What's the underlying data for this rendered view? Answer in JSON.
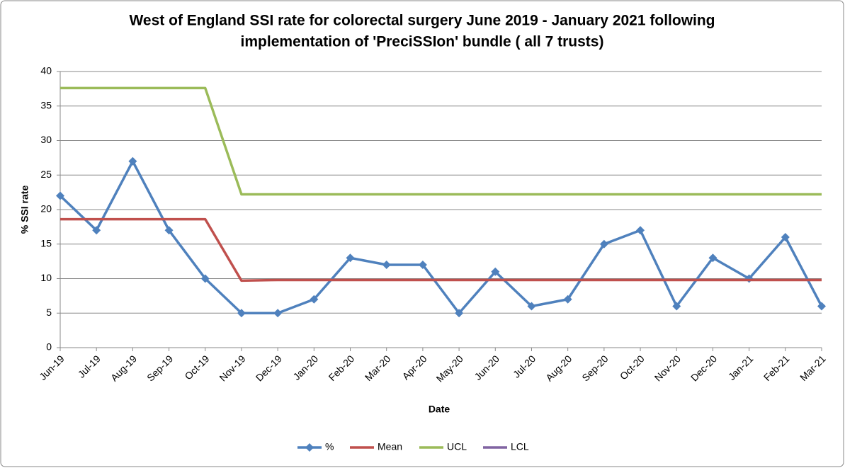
{
  "chart_data": {
    "type": "line",
    "title": [
      "West of England SSI rate for colorectal surgery June 2019 - January 2021 following",
      "implementation of 'PreciSSIon' bundle ( all 7 trusts)"
    ],
    "x_label": "Date",
    "y_label": "% SSI rate",
    "categories": [
      "Jun-19",
      "Jul-19",
      "Aug-19",
      "Sep-19",
      "Oct-19",
      "Nov-19",
      "Dec-19",
      "Jan-20",
      "Feb-20",
      "Mar-20",
      "Apr-20",
      "May-20",
      "Jun-20",
      "Jul-20",
      "Aug-20",
      "Sep-20",
      "Oct-20",
      "Nov-20",
      "Dec-20",
      "Jan-21",
      "Feb-21",
      "Mar-21"
    ],
    "series": [
      {
        "name": "%",
        "color": "#4f81bd",
        "marker": "diamond",
        "values": [
          22,
          17,
          27,
          17,
          10,
          5,
          5,
          7,
          13,
          12,
          12,
          5,
          11,
          6,
          7,
          15,
          17,
          6,
          13,
          10,
          16,
          6
        ]
      },
      {
        "name": "Mean",
        "color": "#c0504d",
        "values": [
          18.6,
          18.6,
          18.6,
          18.6,
          18.6,
          9.7,
          9.8,
          9.8,
          9.8,
          9.8,
          9.8,
          9.8,
          9.8,
          9.8,
          9.8,
          9.8,
          9.8,
          9.8,
          9.8,
          9.8,
          9.8,
          9.8
        ]
      },
      {
        "name": "UCL",
        "color": "#9bbb59",
        "values": [
          37.6,
          37.6,
          37.6,
          37.6,
          37.6,
          22.2,
          22.2,
          22.2,
          22.2,
          22.2,
          22.2,
          22.2,
          22.2,
          22.2,
          22.2,
          22.2,
          22.2,
          22.2,
          22.2,
          22.2,
          22.2,
          22.2
        ]
      },
      {
        "name": "LCL",
        "color": "#8064a2",
        "values": [
          null,
          null,
          null,
          null,
          null,
          null,
          null,
          null,
          null,
          null,
          null,
          null,
          null,
          null,
          null,
          null,
          null,
          null,
          null,
          null,
          null,
          null
        ]
      }
    ],
    "ylim": [
      0,
      40
    ],
    "yticks": [
      0,
      5,
      10,
      15,
      20,
      25,
      30,
      35,
      40
    ],
    "grid": true,
    "legend": "bottom"
  }
}
